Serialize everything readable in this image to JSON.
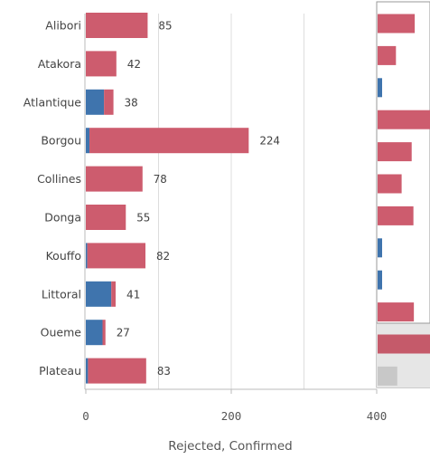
{
  "chart_data": {
    "type": "bar",
    "orientation": "horizontal",
    "stacked": true,
    "categories": [
      "Alibori",
      "Atakora",
      "Atlantique",
      "Borgou",
      "Collines",
      "Donga",
      "Kouffo",
      "Littoral",
      "Oueme",
      "Plateau"
    ],
    "series": [
      {
        "name": "Confirmed",
        "values": [
          0,
          0,
          25,
          5,
          0,
          0,
          2,
          35,
          23,
          3
        ]
      },
      {
        "name": "Rejected",
        "values": [
          85,
          42,
          13,
          219,
          78,
          55,
          80,
          6,
          4,
          80
        ]
      }
    ],
    "totals": [
      85,
      42,
      38,
      224,
      78,
      55,
      82,
      41,
      27,
      83
    ],
    "xlabel": "Rejected, Confirmed",
    "xlim": [
      0,
      400
    ],
    "xticks": [
      0,
      200,
      400
    ],
    "tick_labels": [
      "0",
      "200",
      "400"
    ],
    "grid": true,
    "colors": {
      "Confirmed": "#3f74ad",
      "Rejected": "#cd5c6e",
      "grid": "#dddddd",
      "minimap_bg": "#e6e6e6"
    },
    "minimap": {
      "position": "right",
      "bars": [
        {
          "series": "Rejected",
          "value": 85
        },
        {
          "series": "Rejected",
          "value": 42
        },
        {
          "series": "Confirmed",
          "value": 38
        },
        {
          "series": "Rejected",
          "value": 224
        },
        {
          "series": "Rejected",
          "value": 78
        },
        {
          "series": "Rejected",
          "value": 55
        },
        {
          "series": "Rejected",
          "value": 82
        },
        {
          "series": "Confirmed",
          "value": 41
        },
        {
          "series": "Confirmed",
          "value": 27
        },
        {
          "series": "Rejected",
          "value": 83
        },
        {
          "series": "Rejected",
          "value": 122
        },
        {
          "series": "Muted",
          "value": 45
        }
      ]
    }
  }
}
